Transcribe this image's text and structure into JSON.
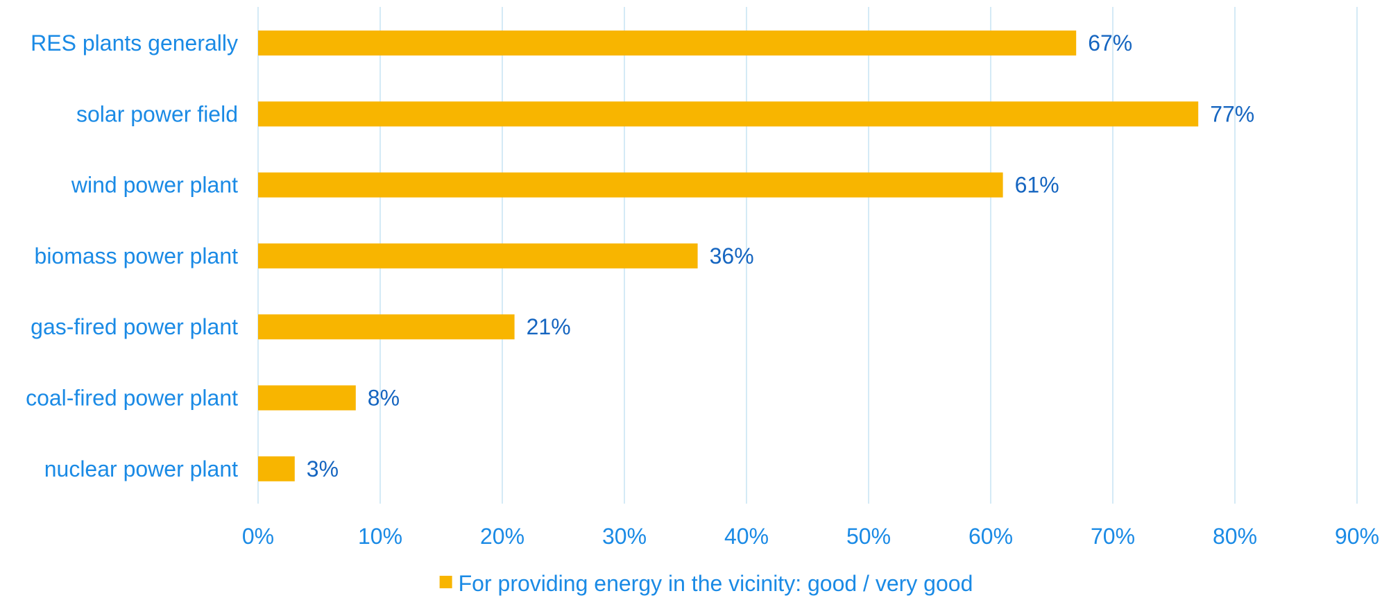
{
  "chart_data": {
    "type": "bar",
    "orientation": "horizontal",
    "categories": [
      "RES plants generally",
      "solar power field",
      "wind power plant",
      "biomass power plant",
      "gas-fired power plant",
      "coal-fired power plant",
      "nuclear power plant"
    ],
    "series": [
      {
        "name": "For providing energy in the vicinity: good / very good",
        "values": [
          67,
          77,
          61,
          36,
          21,
          8,
          3
        ],
        "value_labels": [
          "67%",
          "77%",
          "61%",
          "36%",
          "21%",
          "8%",
          "3%"
        ],
        "color": "#f8b500"
      }
    ],
    "x_ticks": [
      "0%",
      "10%",
      "20%",
      "30%",
      "40%",
      "50%",
      "60%",
      "70%",
      "80%",
      "90%"
    ],
    "xlim": [
      0,
      90
    ],
    "grid": "vertical",
    "legend_position": "bottom",
    "title": "",
    "xlabel": "",
    "ylabel": ""
  },
  "colors": {
    "bar": "#f8b500",
    "category_text": "#1a8ae5",
    "tick_text": "#1a8ae5",
    "value_text": "#1565c0",
    "legend_text": "#1a8ae5",
    "gridline": "#c6e3f4"
  }
}
